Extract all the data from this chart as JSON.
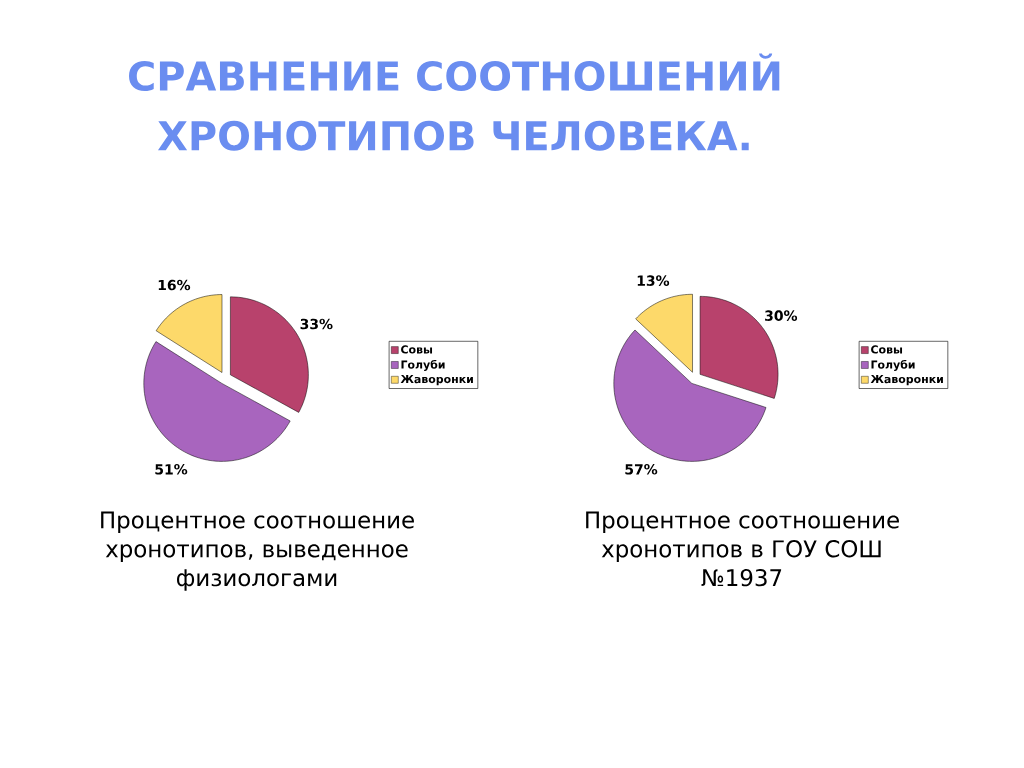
{
  "chart_data": [
    {
      "type": "pie",
      "title": "СРАВНЕНИЕ СООТНОШЕНИЙ ХРОНОТИПОВ ЧЕЛОВЕКА.",
      "categories": [
        "Совы",
        "Голуби",
        "Жаворонки"
      ],
      "values": [
        33,
        51,
        16
      ],
      "colors": [
        "#b8426c",
        "#a865be",
        "#fdd96a"
      ],
      "value_labels": [
        "33%",
        "51%",
        "16%"
      ],
      "legend": "right",
      "annotations": [
        "Процентное соотношение хронотипов, выведенное физиологами"
      ]
    },
    {
      "type": "pie",
      "categories": [
        "Совы",
        "Голуби",
        "Жаворонки"
      ],
      "values": [
        30,
        57,
        13
      ],
      "colors": [
        "#b8426c",
        "#a865be",
        "#fdd96a"
      ],
      "value_labels": [
        "30%",
        "57%",
        "13%"
      ],
      "legend": "right",
      "annotations": [
        "Процентное соотношение хронотипов в ГОУ СОШ №1937"
      ]
    }
  ]
}
